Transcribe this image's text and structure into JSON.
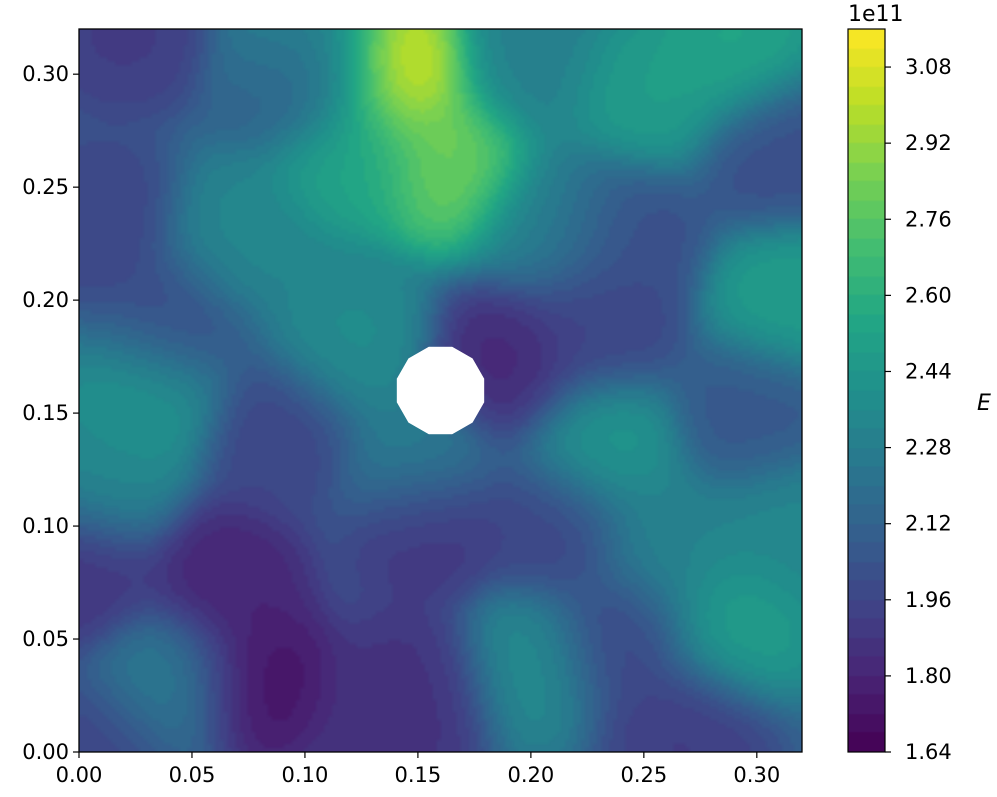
{
  "chart_data": {
    "type": "heatmap",
    "title": "",
    "xlabel": "",
    "ylabel": "",
    "xlim": [
      0.0,
      0.32
    ],
    "ylim": [
      0.0,
      0.32
    ],
    "x_ticks": [
      "0.00",
      "0.05",
      "0.10",
      "0.15",
      "0.20",
      "0.25",
      "0.30"
    ],
    "y_ticks": [
      "0.00",
      "0.05",
      "0.10",
      "0.15",
      "0.20",
      "0.25",
      "0.30"
    ],
    "colormap": "viridis",
    "hole": {
      "center": [
        0.16,
        0.16
      ],
      "radius": 0.02
    },
    "colorbar": {
      "label": "E",
      "scale_label": "1e11",
      "range": [
        1.64,
        3.16
      ],
      "ticks": [
        "1.64",
        "1.80",
        "1.96",
        "2.12",
        "2.28",
        "2.44",
        "2.60",
        "2.76",
        "2.92",
        "3.08"
      ],
      "unit_multiplier": 100000000000.0
    },
    "field_values": {
      "units": "x 1e11",
      "background_level": 2.15,
      "features": [
        {
          "x": 0.14,
          "y": 0.302,
          "value": 3.12
        },
        {
          "x": 0.1,
          "y": 0.31,
          "value": 2.45
        },
        {
          "x": 0.165,
          "y": 0.26,
          "value": 2.85
        },
        {
          "x": 0.12,
          "y": 0.265,
          "value": 2.55
        },
        {
          "x": 0.25,
          "y": 0.29,
          "value": 2.5
        },
        {
          "x": 0.29,
          "y": 0.31,
          "value": 2.55
        },
        {
          "x": 0.315,
          "y": 0.2,
          "value": 2.5
        },
        {
          "x": 0.315,
          "y": 0.1,
          "value": 2.35
        },
        {
          "x": 0.29,
          "y": 0.055,
          "value": 2.5
        },
        {
          "x": 0.23,
          "y": 0.135,
          "value": 2.45
        },
        {
          "x": 0.03,
          "y": 0.16,
          "value": 2.45
        },
        {
          "x": 0.12,
          "y": 0.18,
          "value": 2.38
        },
        {
          "x": 0.01,
          "y": 0.12,
          "value": 2.35
        },
        {
          "x": 0.2,
          "y": 0.04,
          "value": 2.38
        },
        {
          "x": 0.04,
          "y": 0.03,
          "value": 2.28
        },
        {
          "x": 0.26,
          "y": 0.09,
          "value": 2.32
        },
        {
          "x": 0.07,
          "y": 0.225,
          "value": 2.35
        },
        {
          "x": 0.21,
          "y": 0.235,
          "value": 2.3
        },
        {
          "x": 0.2,
          "y": 0.305,
          "value": 2.3
        },
        {
          "x": 0.15,
          "y": 0.13,
          "value": 2.3
        },
        {
          "x": 0.08,
          "y": 0.03,
          "value": 1.7
        },
        {
          "x": 0.065,
          "y": 0.075,
          "value": 1.78
        },
        {
          "x": 0.155,
          "y": 0.1,
          "value": 1.86
        },
        {
          "x": 0.19,
          "y": 0.17,
          "value": 1.8
        },
        {
          "x": 0.15,
          "y": 0.03,
          "value": 1.85
        },
        {
          "x": 0.135,
          "y": 0.01,
          "value": 1.85
        },
        {
          "x": 0.02,
          "y": 0.32,
          "value": 1.9
        },
        {
          "x": 0.1,
          "y": 0.3,
          "value": 1.95
        },
        {
          "x": 0.0,
          "y": 0.08,
          "value": 1.85
        },
        {
          "x": 0.01,
          "y": 0.235,
          "value": 1.95
        },
        {
          "x": 0.04,
          "y": 0.19,
          "value": 1.97
        },
        {
          "x": 0.09,
          "y": 0.14,
          "value": 1.95
        },
        {
          "x": 0.23,
          "y": 0.19,
          "value": 1.95
        },
        {
          "x": 0.21,
          "y": 0.1,
          "value": 1.95
        },
        {
          "x": 0.24,
          "y": 0.05,
          "value": 1.95
        },
        {
          "x": 0.27,
          "y": 0.01,
          "value": 1.9
        },
        {
          "x": 0.31,
          "y": 0.265,
          "value": 2.0
        },
        {
          "x": 0.24,
          "y": 0.23,
          "value": 2.0
        },
        {
          "x": 0.3,
          "y": 0.15,
          "value": 2.05
        },
        {
          "x": 0.01,
          "y": 0.0,
          "value": 1.95
        }
      ]
    }
  }
}
